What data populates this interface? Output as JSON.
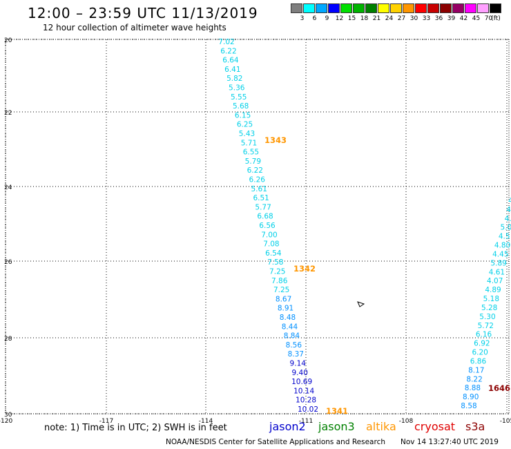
{
  "header": {
    "title": "12:00 – 23:59 UTC 11/13/2019",
    "subtitle": "12 hour collection of altimeter wave heights"
  },
  "color_scale": {
    "unit_label": "(ft)",
    "steps": [
      {
        "label": "3",
        "color": "#7f7f7f"
      },
      {
        "label": "6",
        "color": "#00ffff"
      },
      {
        "label": "9",
        "color": "#00a8ff"
      },
      {
        "label": "12",
        "color": "#0000ff"
      },
      {
        "label": "15",
        "color": "#00e000"
      },
      {
        "label": "18",
        "color": "#00b400"
      },
      {
        "label": "21",
        "color": "#008000"
      },
      {
        "label": "24",
        "color": "#ffff00"
      },
      {
        "label": "27",
        "color": "#ffd200"
      },
      {
        "label": "30",
        "color": "#ff9600"
      },
      {
        "label": "33",
        "color": "#ff0000"
      },
      {
        "label": "36",
        "color": "#c80000"
      },
      {
        "label": "39",
        "color": "#8c0000"
      },
      {
        "label": "42",
        "color": "#960064"
      },
      {
        "label": "45",
        "color": "#ff00ff"
      },
      {
        "label": "70",
        "color": "#ffa0ff"
      },
      {
        "label": "",
        "color": "#000000"
      }
    ]
  },
  "map": {
    "lat_ticks": [
      "20",
      "22",
      "24",
      "26",
      "28",
      "30"
    ],
    "lon_ticks": [
      "-120",
      "-117",
      "-114",
      "-111",
      "-108",
      "-105"
    ],
    "track_a": [
      "7.02",
      "6.22",
      "6.64",
      "6.41",
      "5.82",
      "5.36",
      "5.55",
      "5.68",
      "6.15",
      "6.25",
      "5.43",
      "5.71",
      "6.55",
      "5.79",
      "6.22",
      "6.26",
      "5.61",
      "6.51",
      "5.77",
      "6.68",
      "6.56",
      "7.00",
      "7.08",
      "6.54",
      "7.58",
      "7.25",
      "7.86",
      "7.25",
      "8.67",
      "8.91",
      "8.48",
      "8.44",
      "8.84",
      "8.56",
      "8.37",
      "9.14",
      "9.40",
      "10.69",
      "10.14",
      "10.28",
      "10.02"
    ],
    "track_b": [
      "4.",
      "4.",
      "4.",
      "5.0",
      "4.5",
      "4.80",
      "4.45",
      "5.89",
      "4.61",
      "4.07",
      "4.89",
      "5.18",
      "5.28",
      "5.30",
      "5.72",
      "6.16",
      "6.92",
      "6.20",
      "6.86",
      "8.17",
      "8.22",
      "8.88",
      "8.90",
      "8.58"
    ],
    "pass_labels": [
      {
        "text": "1343",
        "color": "#ff9600"
      },
      {
        "text": "1342",
        "color": "#ff9600"
      },
      {
        "text": "1341",
        "color": "#ff9600"
      },
      {
        "text": "1646",
        "color": "#8c0000"
      }
    ]
  },
  "legend": {
    "note": "note: 1) Time is in UTC; 2) SWH is in feet",
    "satellites": [
      {
        "name": "jason2",
        "color": "#0000cc"
      },
      {
        "name": "jason3",
        "color": "#008000"
      },
      {
        "name": "altika",
        "color": "#ff9600"
      },
      {
        "name": "cryosat",
        "color": "#e00000"
      },
      {
        "name": "s3a",
        "color": "#8c0000"
      }
    ]
  },
  "footer": {
    "credit": "NOAA/NESDIS Center for Satellite Applications and Research",
    "timestamp": "Nov 14 13:27:40 UTC 2019"
  }
}
